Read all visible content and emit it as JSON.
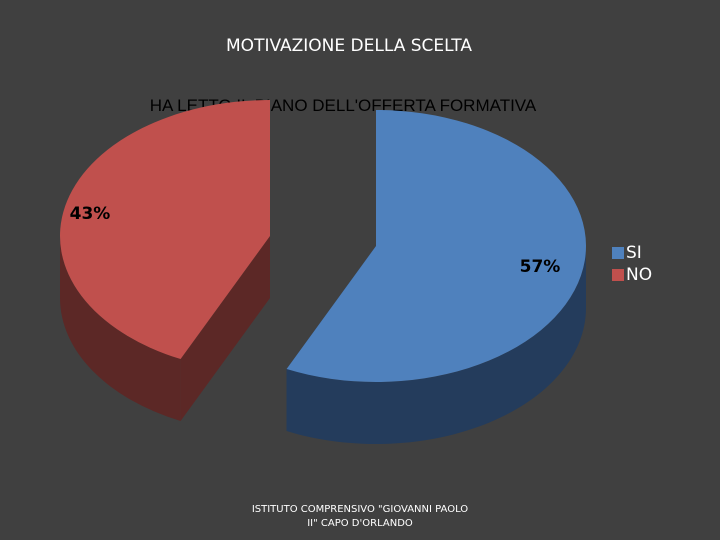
{
  "slide_title": "MOTIVAZIONE DELLA SCELTA",
  "footer_text": "ISTITUTO COMPRENSIVO \"GIOVANNI PAOLO II\" CAPO D'ORLANDO",
  "chart_data": {
    "type": "pie",
    "title": "HA LETTO IL PIANO DELL'OFFERTA FORMATIVA",
    "categories": [
      "SI",
      "NO"
    ],
    "values": [
      57,
      43
    ],
    "data_labels": [
      "57%",
      "43%"
    ],
    "colors": [
      "#4f81bd",
      "#c0504d"
    ],
    "side_colors": [
      "#243c5c",
      "#5c2826"
    ],
    "legend_position": "right",
    "exploded": true,
    "three_d": true
  }
}
